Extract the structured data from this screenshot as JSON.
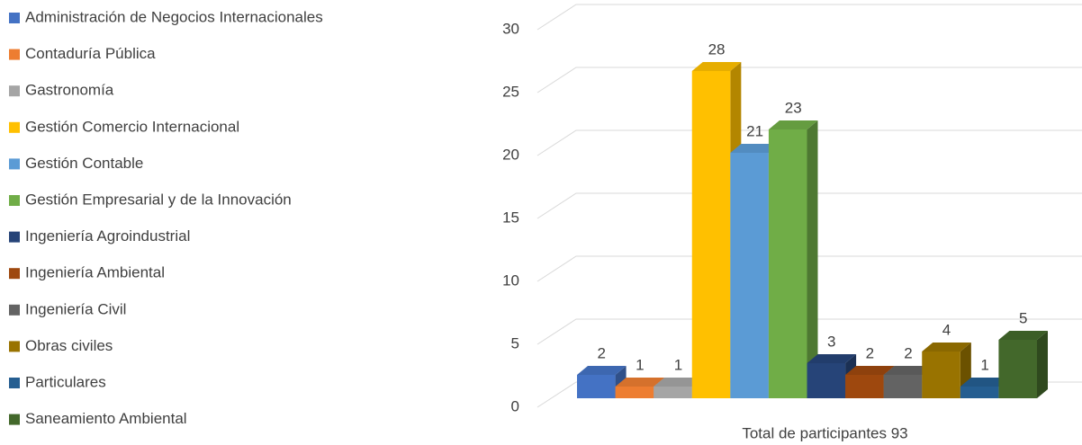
{
  "chart_data": {
    "type": "bar3d",
    "categories": [
      "Total de participantes 93"
    ],
    "series": [
      {
        "name": "Administración de Negocios Internacionales",
        "color": "#4472c4",
        "values": [
          2
        ]
      },
      {
        "name": "Contaduría Pública",
        "color": "#ed7d31",
        "values": [
          1
        ]
      },
      {
        "name": "Gastronomía",
        "color": "#a5a5a5",
        "values": [
          1
        ]
      },
      {
        "name": "Gestión Comercio Internacional",
        "color": "#ffc000",
        "values": [
          28
        ]
      },
      {
        "name": "Gestión Contable",
        "color": "#5b9bd5",
        "values": [
          21
        ]
      },
      {
        "name": "Gestión Empresarial y de la Innovación",
        "color": "#70ad47",
        "values": [
          23
        ]
      },
      {
        "name": "Ingeniería Agroindustrial",
        "color": "#264478",
        "values": [
          3
        ]
      },
      {
        "name": "Ingeniería Ambiental",
        "color": "#9e480e",
        "values": [
          2
        ]
      },
      {
        "name": "Ingeniería Civil",
        "color": "#636363",
        "values": [
          2
        ]
      },
      {
        "name": "Obras civiles",
        "color": "#997300",
        "values": [
          4
        ]
      },
      {
        "name": "Particulares",
        "color": "#255e91",
        "values": [
          1
        ]
      },
      {
        "name": "Saneamiento Ambiental",
        "color": "#43682b",
        "values": [
          5
        ]
      }
    ],
    "ylim": [
      0,
      30
    ],
    "yticks": [
      0,
      5,
      10,
      15,
      20,
      25,
      30
    ],
    "grid": true,
    "legend": "left"
  }
}
